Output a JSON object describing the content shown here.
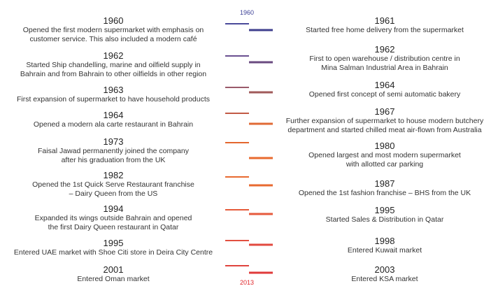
{
  "timeline": {
    "start_label": "1960",
    "end_label": "2013",
    "start_color": "#3b3f96",
    "end_color": "#e0272b",
    "left": [
      {
        "year": "1960",
        "text": [
          "Opened the first modern supermarket with emphasis on",
          "customer service. This also included a modern café"
        ],
        "color": "#4a4a9a"
      },
      {
        "year": "1962",
        "text": [
          "Started Ship chandelling, marine and oilfield supply in",
          "Bahrain and from Bahrain to other oilfields in other region"
        ],
        "color": "#6a5090"
      },
      {
        "year": "1963",
        "text": [
          "First expansion of supermarket to have household products"
        ],
        "color": "#9a5a6a"
      },
      {
        "year": "1964",
        "text": [
          "Opened a modern ala carte restaurant in Bahrain"
        ],
        "color": "#c25a45"
      },
      {
        "year": "1973",
        "text": [
          "Faisal Jawad permanently joined the company",
          "after his graduation from the UK"
        ],
        "color": "#e4672e"
      },
      {
        "year": "1982",
        "text": [
          "Opened the 1st Quick Serve Restaurant franchise",
          "– Dairy Queen from the US"
        ],
        "color": "#e86a30"
      },
      {
        "year": "1994",
        "text": [
          "Expanded its wings outside Bahrain and opened",
          "the first Dairy Queen restaurant in Qatar"
        ],
        "color": "#e65a3a"
      },
      {
        "year": "1995",
        "text": [
          "Entered UAE market with Shoe Citi store in Deira City Centre"
        ],
        "color": "#e25040"
      },
      {
        "year": "2001",
        "text": [
          "Entered Oman  market"
        ],
        "color": "#e0443e"
      }
    ],
    "right": [
      {
        "year": "1961",
        "text": [
          "Started free home delivery from the supermarket"
        ],
        "color": "#3f3f8e"
      },
      {
        "year": "1962",
        "text": [
          "First to open warehouse / distribution centre in",
          "Mina Salman Industrial Area in Bahrain"
        ],
        "color": "#6a4a80"
      },
      {
        "year": "1964",
        "text": [
          "Opened first concept of semi automatic bakery"
        ],
        "color": "#a05a5a"
      },
      {
        "year": "1967",
        "text": [
          "Further expansion of supermarket to house modern butchery",
          "department and started chilled meat air-flown from Australia"
        ],
        "color": "#e06a35"
      },
      {
        "year": "1980",
        "text": [
          "Opened largest and most modern supermarket",
          "with allotted car parking"
        ],
        "color": "#e86a2e"
      },
      {
        "year": "1987",
        "text": [
          "Opened the 1st fashion franchise – BHS from the UK"
        ],
        "color": "#e86a30"
      },
      {
        "year": "1995",
        "text": [
          "Started Sales & Distribution in Qatar"
        ],
        "color": "#e65a3c"
      },
      {
        "year": "1998",
        "text": [
          "Entered Kuwait market"
        ],
        "color": "#e24a40"
      },
      {
        "year": "2003",
        "text": [
          "Entered KSA market"
        ],
        "color": "#e03a3a"
      }
    ]
  }
}
